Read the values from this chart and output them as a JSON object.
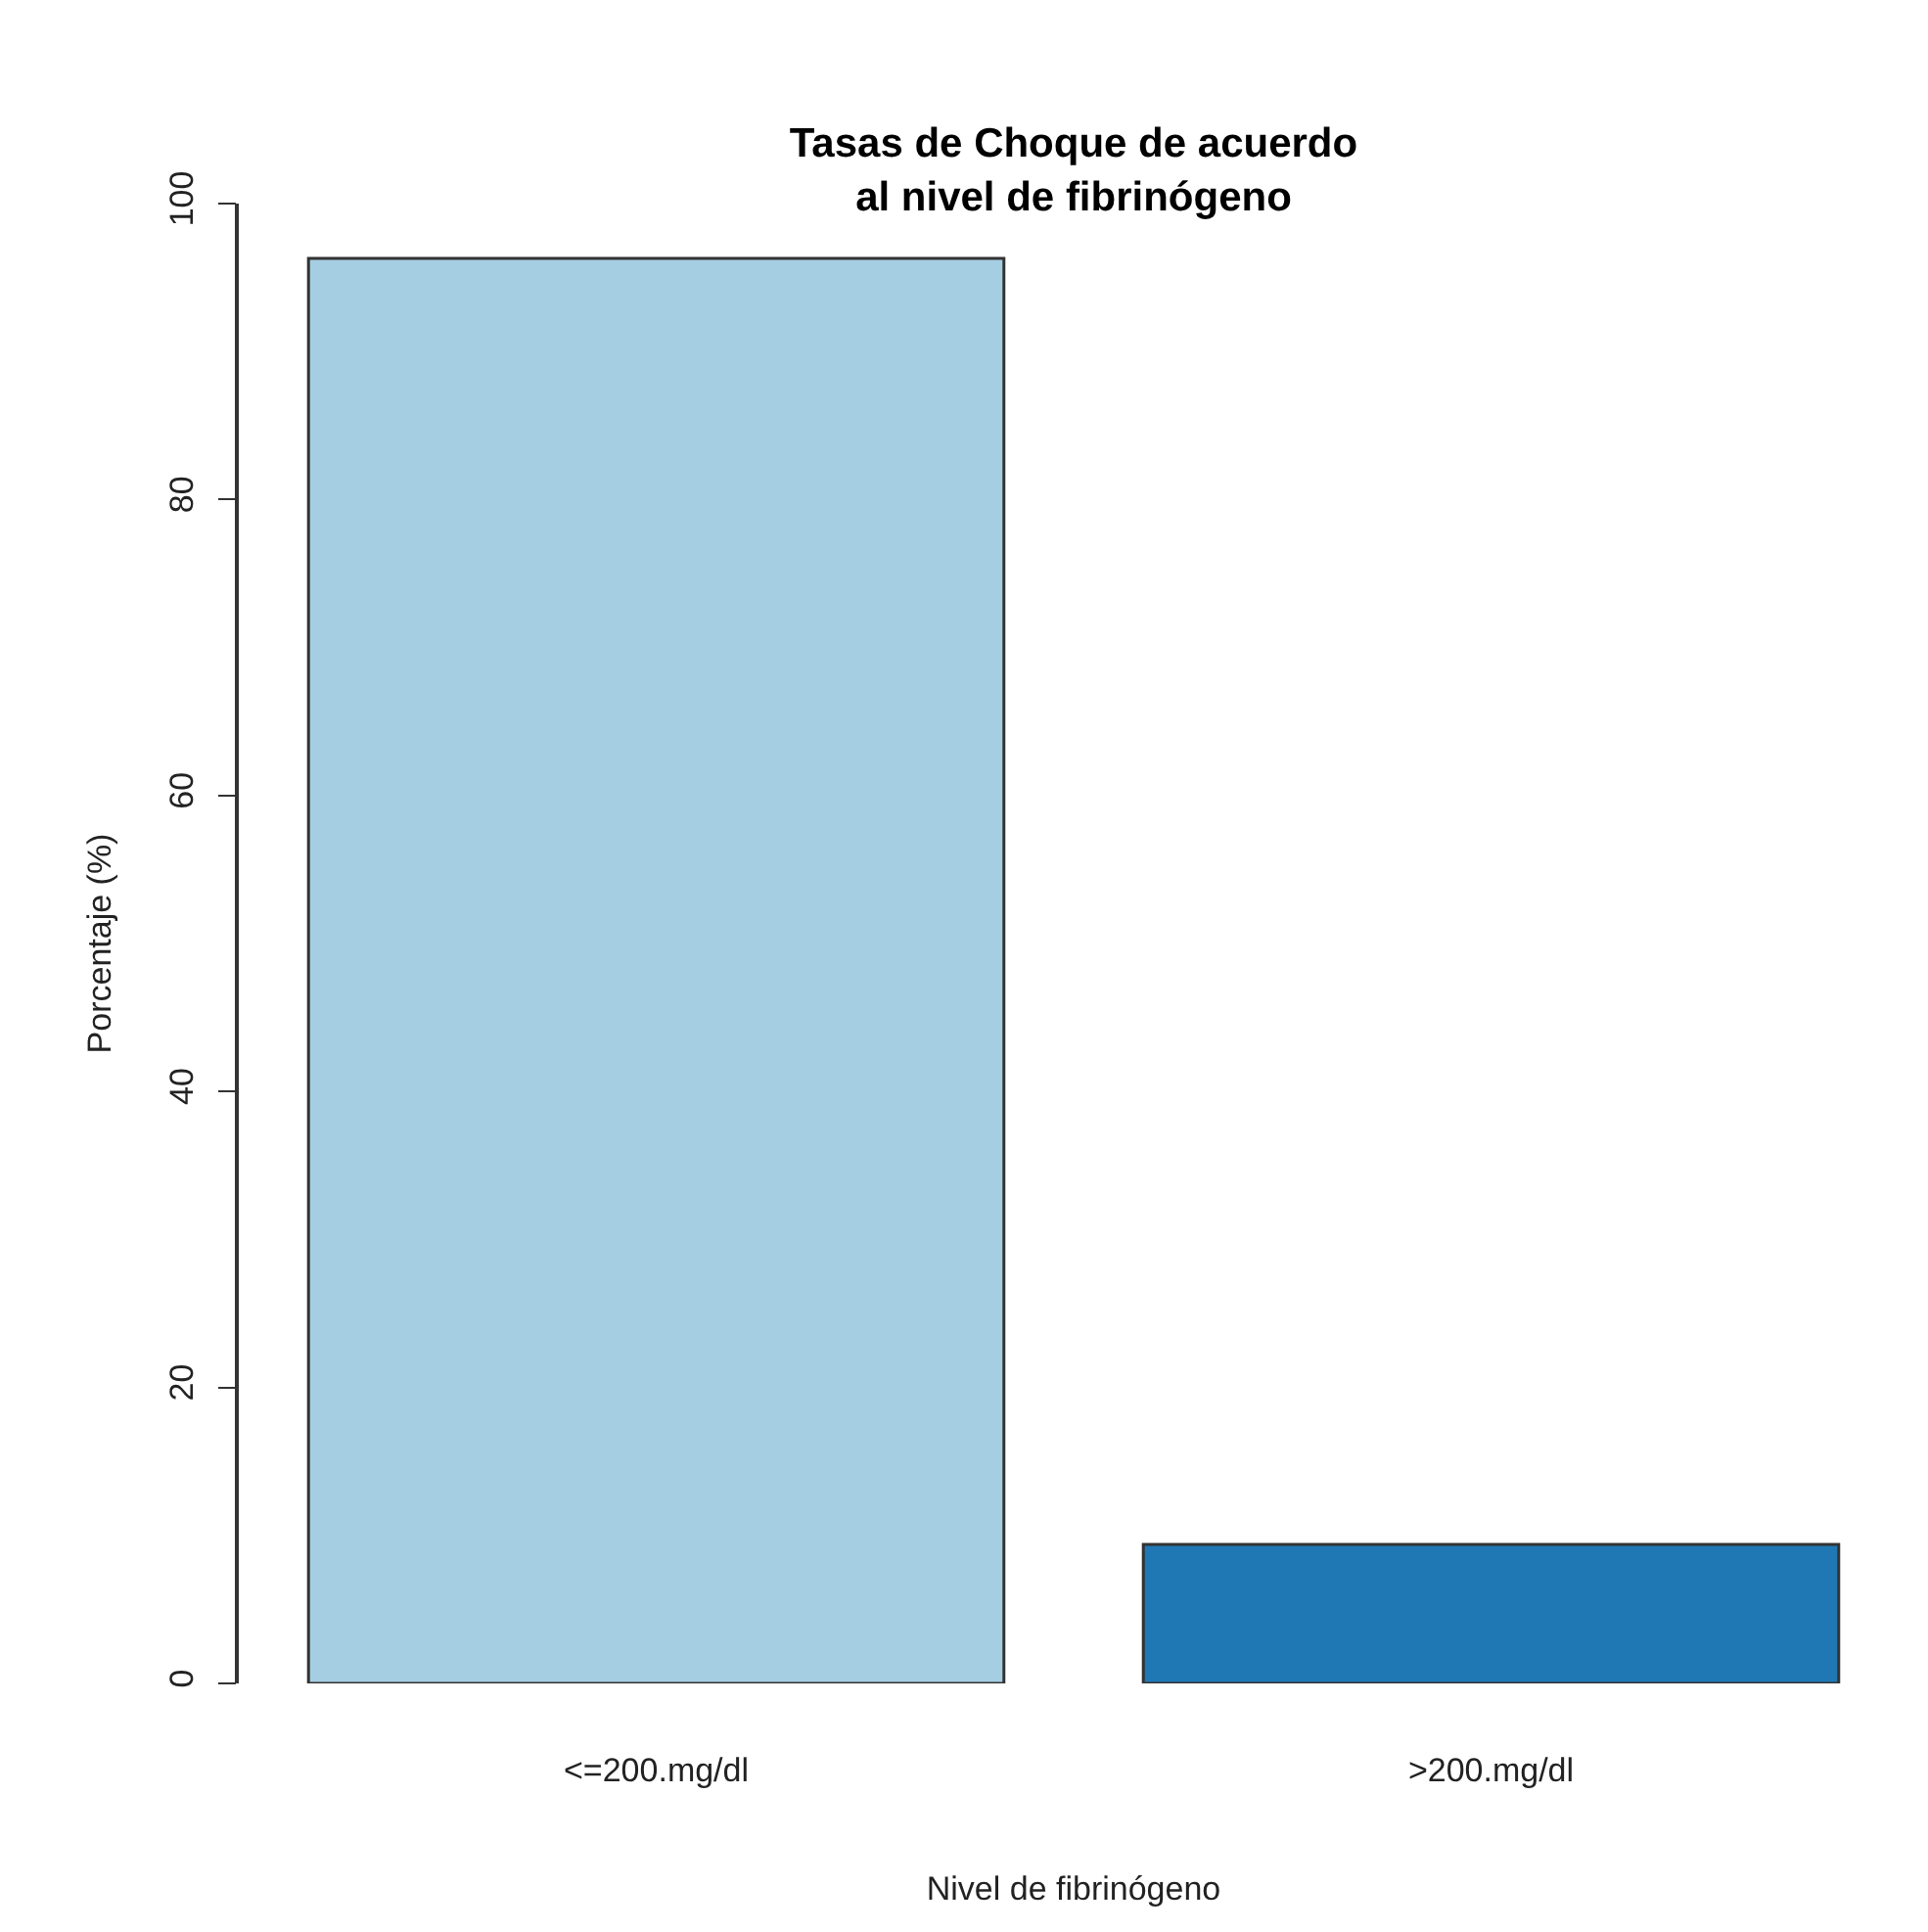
{
  "chart_data": {
    "type": "bar",
    "title": "Tasas de Choque de acuerdo\nal nivel de fibrinógeno",
    "xlabel": "Nivel de fibrinógeno",
    "ylabel": "Porcentaje (%)",
    "categories": [
      "<=200.mg/dl",
      ">200.mg/dl"
    ],
    "values": [
      96.3,
      9.4
    ],
    "colors": [
      "#a6cee3",
      "#1f78b4"
    ],
    "ylim": [
      0,
      100
    ],
    "yticks": [
      0,
      20,
      40,
      60,
      80,
      100
    ],
    "grid": false
  }
}
